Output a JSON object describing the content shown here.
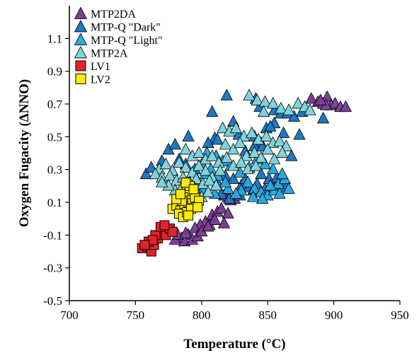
{
  "chart_data": {
    "type": "scatter",
    "title": "",
    "xlabel": "Temperature (°C)",
    "ylabel": "Oxygen Fugacity (ΔNNO)",
    "xlim": [
      700,
      950
    ],
    "ylim": [
      -0.5,
      1.3
    ],
    "xticks": [
      700,
      750,
      800,
      850,
      900,
      950
    ],
    "yticks": [
      -0.5,
      -0.3,
      -0.1,
      0.1,
      0.3,
      0.5,
      0.7,
      0.9,
      1.1
    ],
    "xtick_labels": [
      "700",
      "750",
      "800",
      "850",
      "900",
      "950"
    ],
    "ytick_labels": [
      "-0.5",
      "-0.3",
      "-0.1",
      "0.1",
      "0.3",
      "0.5",
      "0.7",
      "0.9",
      "1.1"
    ],
    "grid": false,
    "legend_position": "top-left",
    "series": [
      {
        "name": "MTP2DA",
        "marker": "triangle",
        "color": "#7B3F98",
        "points": [
          [
            883,
            0.73
          ],
          [
            888,
            0.71
          ],
          [
            892,
            0.7
          ],
          [
            895,
            0.74
          ],
          [
            898,
            0.69
          ],
          [
            901,
            0.7
          ],
          [
            905,
            0.68
          ],
          [
            909,
            0.68
          ],
          [
            894,
            0.69
          ],
          [
            890,
            0.72
          ],
          [
            803,
            -0.02
          ],
          [
            808,
            0.02
          ],
          [
            812,
            0.04
          ],
          [
            806,
            -0.04
          ],
          [
            815,
            0.06
          ],
          [
            820,
            0.03
          ],
          [
            810,
            -0.01
          ],
          [
            817,
            -0.03
          ],
          [
            799,
            -0.04
          ],
          [
            795,
            -0.06
          ],
          [
            790,
            -0.1
          ],
          [
            785,
            -0.12
          ],
          [
            780,
            -0.13
          ],
          [
            787,
            -0.14
          ],
          [
            793,
            -0.13
          ],
          [
            797,
            -0.11
          ],
          [
            782,
            -0.1
          ],
          [
            800,
            -0.08
          ],
          [
            805,
            -0.05
          ],
          [
            788,
            -0.09
          ],
          [
            820,
            0.13
          ],
          [
            825,
            0.12
          ],
          [
            822,
            0.11
          ],
          [
            817,
            0.14
          ]
        ]
      },
      {
        "name": "MTP-Q \"Dark\"",
        "marker": "triangle",
        "color": "#1F78C1",
        "points": [
          [
            819,
            0.75
          ],
          [
            808,
            0.65
          ],
          [
            841,
            0.73
          ],
          [
            844,
            0.68
          ],
          [
            855,
            0.66
          ],
          [
            860,
            0.64
          ],
          [
            865,
            0.64
          ],
          [
            870,
            0.62
          ],
          [
            876,
            0.65
          ],
          [
            892,
            0.61
          ],
          [
            824,
            0.59
          ],
          [
            855,
            0.58
          ],
          [
            862,
            0.52
          ],
          [
            849,
            0.55
          ],
          [
            852,
            0.56
          ],
          [
            874,
            0.51
          ],
          [
            810,
            0.49
          ],
          [
            828,
            0.51
          ],
          [
            840,
            0.5
          ],
          [
            845,
            0.46
          ],
          [
            868,
            0.38
          ],
          [
            833,
            0.41
          ],
          [
            840,
            0.44
          ],
          [
            846,
            0.44
          ],
          [
            805,
            0.46
          ],
          [
            812,
            0.48
          ],
          [
            775,
            0.42
          ],
          [
            780,
            0.45
          ],
          [
            790,
            0.5
          ],
          [
            758,
            0.27
          ],
          [
            762,
            0.31
          ],
          [
            770,
            0.35
          ],
          [
            783,
            0.36
          ],
          [
            788,
            0.33
          ],
          [
            795,
            0.3
          ],
          [
            812,
            0.22
          ],
          [
            818,
            0.26
          ],
          [
            824,
            0.24
          ],
          [
            830,
            0.2
          ],
          [
            836,
            0.19
          ],
          [
            842,
            0.21
          ],
          [
            848,
            0.18
          ],
          [
            855,
            0.2
          ],
          [
            860,
            0.22
          ],
          [
            864,
            0.19
          ],
          [
            851,
            0.24
          ],
          [
            839,
            0.17
          ],
          [
            829,
            0.14
          ],
          [
            821,
            0.12
          ],
          [
            815,
            0.15
          ],
          [
            833,
            0.24
          ],
          [
            845,
            0.27
          ],
          [
            857,
            0.25
          ]
        ]
      },
      {
        "name": "MTP-Q \"Light\"",
        "marker": "triangle",
        "color": "#29A8E0",
        "points": [
          [
            835,
            0.22
          ],
          [
            840,
            0.18
          ],
          [
            845,
            0.16
          ],
          [
            850,
            0.14
          ],
          [
            855,
            0.17
          ],
          [
            858,
            0.21
          ],
          [
            863,
            0.24
          ],
          [
            830,
            0.17
          ],
          [
            826,
            0.15
          ],
          [
            820,
            0.18
          ],
          [
            818,
            0.22
          ],
          [
            812,
            0.26
          ],
          [
            807,
            0.3
          ],
          [
            803,
            0.27
          ],
          [
            800,
            0.33
          ],
          [
            797,
            0.23
          ],
          [
            795,
            0.2
          ],
          [
            801,
            0.17
          ],
          [
            810,
            0.15
          ],
          [
            839,
            0.13
          ],
          [
            846,
            0.12
          ],
          [
            852,
            0.2
          ],
          [
            859,
            0.15
          ],
          [
            866,
            0.18
          ],
          [
            861,
            0.27
          ],
          [
            854,
            0.3
          ],
          [
            848,
            0.33
          ],
          [
            842,
            0.36
          ],
          [
            836,
            0.31
          ],
          [
            829,
            0.28
          ],
          [
            822,
            0.32
          ],
          [
            816,
            0.35
          ],
          [
            811,
            0.38
          ],
          [
            804,
            0.4
          ]
        ]
      },
      {
        "name": "MTP2A",
        "marker": "triangle",
        "color": "#7FD3DD",
        "points": [
          [
            836,
            0.75
          ],
          [
            842,
            0.72
          ],
          [
            848,
            0.71
          ],
          [
            854,
            0.7
          ],
          [
            860,
            0.67
          ],
          [
            866,
            0.66
          ],
          [
            873,
            0.7
          ],
          [
            878,
            0.68
          ],
          [
            882,
            0.66
          ],
          [
            847,
            0.65
          ],
          [
            816,
            0.55
          ],
          [
            821,
            0.53
          ],
          [
            826,
            0.55
          ],
          [
            832,
            0.5
          ],
          [
            838,
            0.52
          ],
          [
            843,
            0.48
          ],
          [
            849,
            0.5
          ],
          [
            854,
            0.46
          ],
          [
            859,
            0.47
          ],
          [
            864,
            0.44
          ],
          [
            818,
            0.45
          ],
          [
            824,
            0.42
          ],
          [
            829,
            0.46
          ],
          [
            834,
            0.38
          ],
          [
            840,
            0.4
          ],
          [
            845,
            0.37
          ],
          [
            850,
            0.42
          ],
          [
            855,
            0.36
          ],
          [
            861,
            0.4
          ],
          [
            788,
            0.42
          ],
          [
            793,
            0.38
          ],
          [
            798,
            0.4
          ],
          [
            803,
            0.36
          ],
          [
            808,
            0.38
          ],
          [
            813,
            0.34
          ],
          [
            819,
            0.37
          ],
          [
            824,
            0.32
          ],
          [
            830,
            0.34
          ],
          [
            835,
            0.3
          ],
          [
            841,
            0.32
          ],
          [
            768,
            0.3
          ],
          [
            773,
            0.33
          ],
          [
            778,
            0.29
          ],
          [
            783,
            0.34
          ],
          [
            788,
            0.31
          ],
          [
            793,
            0.28
          ],
          [
            798,
            0.32
          ],
          [
            803,
            0.29
          ],
          [
            808,
            0.25
          ],
          [
            814,
            0.29
          ],
          [
            765,
            0.27
          ],
          [
            770,
            0.25
          ],
          [
            776,
            0.26
          ],
          [
            781,
            0.23
          ],
          [
            786,
            0.25
          ],
          [
            791,
            0.22
          ],
          [
            796,
            0.24
          ],
          [
            801,
            0.21
          ],
          [
            806,
            0.23
          ],
          [
            811,
            0.2
          ],
          [
            780,
            0.17
          ],
          [
            785,
            0.19
          ],
          [
            790,
            0.15
          ],
          [
            795,
            0.18
          ],
          [
            800,
            0.13
          ],
          [
            805,
            0.16
          ],
          [
            775,
            0.2
          ],
          [
            770,
            0.22
          ]
        ]
      },
      {
        "name": "LV1",
        "marker": "square",
        "color": "#E3242B",
        "points": [
          [
            755,
            -0.18
          ],
          [
            759,
            -0.17
          ],
          [
            762,
            -0.2
          ],
          [
            764,
            -0.16
          ],
          [
            760,
            -0.14
          ],
          [
            767,
            -0.12
          ],
          [
            770,
            -0.08
          ],
          [
            773,
            -0.1
          ],
          [
            776,
            -0.06
          ],
          [
            778,
            -0.08
          ],
          [
            765,
            -0.1
          ],
          [
            769,
            -0.05
          ],
          [
            772,
            -0.04
          ],
          [
            763,
            -0.13
          ],
          [
            757,
            -0.16
          ]
        ]
      },
      {
        "name": "LV2",
        "marker": "square",
        "color": "#FFED00",
        "points": [
          [
            778,
            0.06
          ],
          [
            781,
            0.08
          ],
          [
            784,
            0.05
          ],
          [
            787,
            0.09
          ],
          [
            790,
            0.1
          ],
          [
            793,
            0.12
          ],
          [
            796,
            0.09
          ],
          [
            792,
            0.15
          ],
          [
            789,
            0.17
          ],
          [
            786,
            0.13
          ],
          [
            783,
            0.03
          ],
          [
            786,
            0.01
          ],
          [
            789,
            0.04
          ],
          [
            792,
            0.06
          ],
          [
            795,
            0.13
          ],
          [
            798,
            0.11
          ],
          [
            791,
            0.2
          ],
          [
            788,
            0.22
          ],
          [
            794,
            0.18
          ],
          [
            785,
            0.11
          ],
          [
            781,
            0.12
          ],
          [
            797,
            0.07
          ],
          [
            790,
            0.02
          ],
          [
            784,
            0.15
          ]
        ]
      }
    ]
  }
}
